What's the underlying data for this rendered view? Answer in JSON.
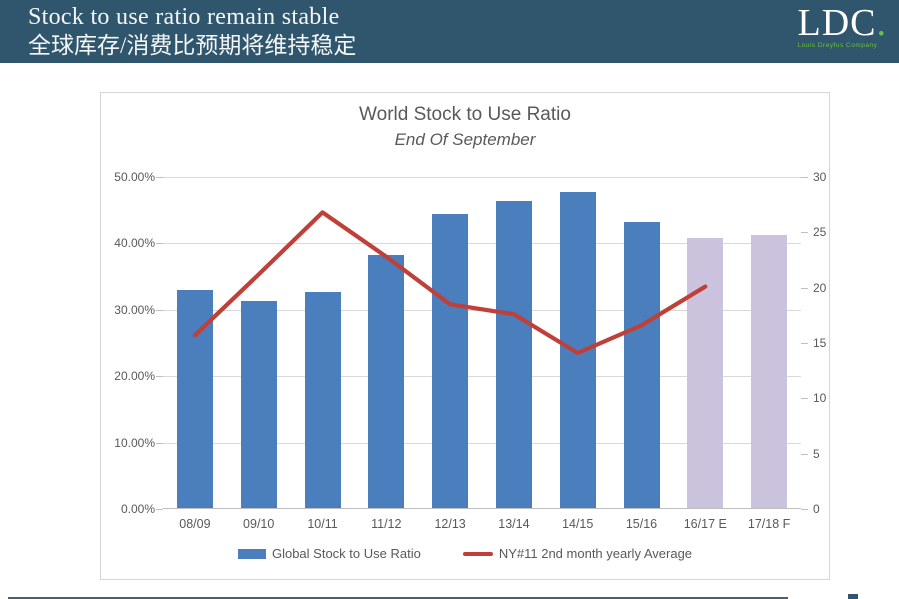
{
  "header": {
    "title_en": "Stock to use ratio remain stable",
    "title_zh": "全球库存/消费比预期将维持稳定",
    "bg_color": "#30566d",
    "logo": {
      "text": "LDC",
      "dot": ".",
      "subtext": "Louis Dreyfus Company",
      "dot_color": "#6cbe45"
    }
  },
  "chart_data": {
    "type": "bar",
    "title": "World Stock to Use Ratio",
    "subtitle": "End Of September",
    "categories": [
      "08/09",
      "09/10",
      "10/11",
      "11/12",
      "12/13",
      "13/14",
      "14/15",
      "15/16",
      "16/17 E",
      "17/18 F"
    ],
    "series": [
      {
        "name": "Global Stock to Use Ratio",
        "type": "bar",
        "axis": "left",
        "unit": "%",
        "values": [
          32.9,
          31.2,
          32.5,
          38.1,
          44.3,
          46.3,
          47.6,
          43.1,
          40.7,
          41.1
        ]
      },
      {
        "name": "NY#11 2nd month yearly Average",
        "type": "line",
        "axis": "right",
        "values": [
          15.7,
          21.2,
          26.8,
          22.8,
          18.5,
          17.6,
          14.1,
          16.6,
          20.1,
          null
        ]
      }
    ],
    "forecast_from_index": 8,
    "left_axis": {
      "min": 0,
      "max": 50,
      "step": 10,
      "tick_labels": [
        "0.00%",
        "10.00%",
        "20.00%",
        "30.00%",
        "40.00%",
        "50.00%"
      ]
    },
    "right_axis": {
      "min": 0,
      "max": 30,
      "step": 5,
      "tick_labels": [
        "0",
        "5",
        "10",
        "15",
        "20",
        "25",
        "30"
      ]
    },
    "colors": {
      "bar": "#4b7ebc",
      "bar_forecast": "#cbc3dd",
      "line": "#bf4038",
      "grid": "#d9d9d9",
      "axis": "#bfbfbf",
      "text": "#595959"
    },
    "legend_position": "bottom",
    "grid": true
  },
  "footer": {}
}
